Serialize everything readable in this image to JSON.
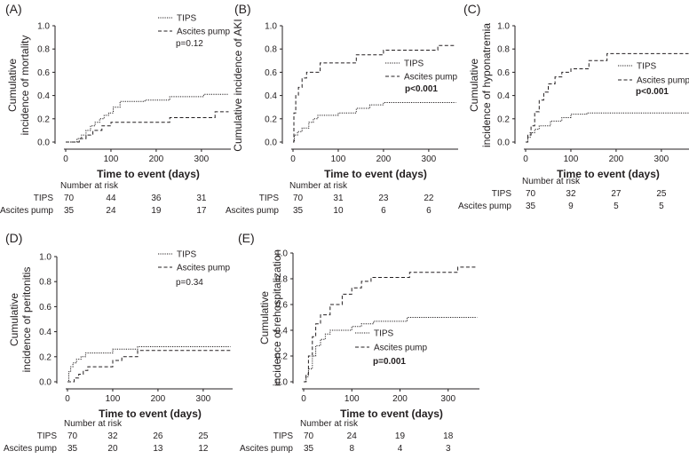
{
  "chart_data": [
    {
      "type": "line",
      "panel_label": "(A)",
      "title": "",
      "xlabel": "Time to event (days)",
      "ylabel": [
        "Cumulative",
        "incidence of mortality"
      ],
      "xlim": [
        0,
        365
      ],
      "ylim": [
        0,
        1
      ],
      "xticks": [
        0,
        100,
        200,
        300
      ],
      "xtick_labels": [
        "0",
        "100",
        "200",
        "300"
      ],
      "yticks": [
        0,
        0.2,
        0.4,
        0.6,
        0.8,
        1.0
      ],
      "ytick_labels": [
        "0.0",
        "0.2",
        "0.4",
        "0.6",
        "0.8",
        "1.0"
      ],
      "legend_position": "top-right",
      "pvalue": "p=0.12",
      "pvalue_bold": false,
      "series": [
        {
          "name": "TIPS",
          "style": "dotted",
          "steps": [
            [
              0,
              0
            ],
            [
              15,
              0
            ],
            [
              25,
              0.03
            ],
            [
              35,
              0.06
            ],
            [
              45,
              0.1
            ],
            [
              55,
              0.14
            ],
            [
              65,
              0.17
            ],
            [
              75,
              0.2
            ],
            [
              85,
              0.23
            ],
            [
              95,
              0.25
            ],
            [
              105,
              0.3
            ],
            [
              120,
              0.35
            ],
            [
              175,
              0.36
            ],
            [
              230,
              0.39
            ],
            [
              305,
              0.41
            ],
            [
              360,
              0.41
            ]
          ]
        },
        {
          "name": "Ascites pump",
          "style": "dashed",
          "steps": [
            [
              0,
              0
            ],
            [
              20,
              0
            ],
            [
              30,
              0.03
            ],
            [
              45,
              0.06
            ],
            [
              60,
              0.1
            ],
            [
              80,
              0.14
            ],
            [
              100,
              0.17
            ],
            [
              230,
              0.21
            ],
            [
              330,
              0.26
            ],
            [
              360,
              0.26
            ]
          ]
        }
      ],
      "risk_table": {
        "heading": "Number at risk",
        "rows": [
          {
            "label": "TIPS",
            "values": [
              "70",
              "44",
              "36",
              "31"
            ]
          },
          {
            "label": "Ascites pump",
            "values": [
              "35",
              "24",
              "19",
              "17"
            ]
          }
        ]
      }
    },
    {
      "type": "line",
      "panel_label": "(B)",
      "title": "",
      "xlabel": "Time to event (days)",
      "ylabel": [
        "Cumulative incidence of AKI"
      ],
      "xlim": [
        0,
        365
      ],
      "ylim": [
        0,
        1
      ],
      "xticks": [
        0,
        100,
        200,
        300
      ],
      "xtick_labels": [
        "0",
        "100",
        "200",
        "300"
      ],
      "yticks": [
        0,
        0.2,
        0.4,
        0.6,
        0.8,
        1.0
      ],
      "ytick_labels": [
        "0.0",
        "0.2",
        "0.4",
        "0.6",
        "0.8",
        "1.0"
      ],
      "legend_position": "right",
      "pvalue": "p<0.001",
      "pvalue_bold": true,
      "series": [
        {
          "name": "TIPS",
          "style": "dotted",
          "steps": [
            [
              0,
              0
            ],
            [
              3,
              0.06
            ],
            [
              10,
              0.09
            ],
            [
              20,
              0.12
            ],
            [
              35,
              0.17
            ],
            [
              45,
              0.2
            ],
            [
              55,
              0.23
            ],
            [
              100,
              0.25
            ],
            [
              140,
              0.29
            ],
            [
              170,
              0.32
            ],
            [
              200,
              0.34
            ],
            [
              360,
              0.34
            ]
          ]
        },
        {
          "name": "Ascites pump",
          "style": "dashed",
          "steps": [
            [
              0,
              0
            ],
            [
              2,
              0.25
            ],
            [
              6,
              0.4
            ],
            [
              12,
              0.47
            ],
            [
              20,
              0.55
            ],
            [
              30,
              0.6
            ],
            [
              60,
              0.68
            ],
            [
              140,
              0.75
            ],
            [
              200,
              0.79
            ],
            [
              320,
              0.83
            ],
            [
              360,
              0.83
            ]
          ]
        }
      ],
      "risk_table": {
        "heading": "Number at risk",
        "rows": [
          {
            "label": "TIPS",
            "values": [
              "70",
              "31",
              "23",
              "22"
            ]
          },
          {
            "label": "Ascites pump",
            "values": [
              "35",
              "10",
              "6",
              "6"
            ]
          }
        ]
      }
    },
    {
      "type": "line",
      "panel_label": "(C)",
      "title": "",
      "xlabel": "Time to event (days)",
      "ylabel": [
        "Cumulative",
        "incidence of hyponatremia"
      ],
      "xlim": [
        0,
        365
      ],
      "ylim": [
        0,
        1
      ],
      "xticks": [
        0,
        100,
        200,
        300
      ],
      "xtick_labels": [
        "0",
        "100",
        "200",
        "300"
      ],
      "yticks": [
        0,
        0.2,
        0.4,
        0.6,
        0.8,
        1.0
      ],
      "ytick_labels": [
        "0.0",
        "0.2",
        "0.4",
        "0.6",
        "0.8",
        "1.0"
      ],
      "legend_position": "right",
      "pvalue": "p<0.001",
      "pvalue_bold": true,
      "series": [
        {
          "name": "TIPS",
          "style": "dotted",
          "steps": [
            [
              0,
              0
            ],
            [
              5,
              0.04
            ],
            [
              10,
              0.08
            ],
            [
              20,
              0.11
            ],
            [
              30,
              0.14
            ],
            [
              55,
              0.18
            ],
            [
              80,
              0.21
            ],
            [
              100,
              0.24
            ],
            [
              135,
              0.25
            ],
            [
              360,
              0.25
            ]
          ]
        },
        {
          "name": "Ascites pump",
          "style": "dashed",
          "steps": [
            [
              0,
              0
            ],
            [
              5,
              0.06
            ],
            [
              12,
              0.14
            ],
            [
              20,
              0.26
            ],
            [
              30,
              0.36
            ],
            [
              40,
              0.43
            ],
            [
              50,
              0.5
            ],
            [
              65,
              0.56
            ],
            [
              80,
              0.6
            ],
            [
              100,
              0.63
            ],
            [
              140,
              0.7
            ],
            [
              180,
              0.76
            ],
            [
              360,
              0.76
            ]
          ]
        }
      ],
      "risk_table": {
        "heading": "Number at risk",
        "rows": [
          {
            "label": "TIPS",
            "values": [
              "70",
              "32",
              "27",
              "25"
            ]
          },
          {
            "label": "Ascites pump",
            "values": [
              "35",
              "9",
              "5",
              "5"
            ]
          }
        ]
      }
    },
    {
      "type": "line",
      "panel_label": "(D)",
      "title": "",
      "xlabel": "Time to event (days)",
      "ylabel": [
        "Cumulative",
        "incidence of peritonitis"
      ],
      "xlim": [
        0,
        365
      ],
      "ylim": [
        0,
        1
      ],
      "xticks": [
        0,
        100,
        200,
        300
      ],
      "xtick_labels": [
        "0",
        "100",
        "200",
        "300"
      ],
      "yticks": [
        0,
        0.2,
        0.4,
        0.6,
        0.8,
        1.0
      ],
      "ytick_labels": [
        "0.0",
        "0.2",
        "0.4",
        "0.6",
        "0.8",
        "1.0"
      ],
      "legend_position": "top-right",
      "pvalue": "p=0.34",
      "pvalue_bold": false,
      "series": [
        {
          "name": "TIPS",
          "style": "dotted",
          "steps": [
            [
              0,
              0
            ],
            [
              3,
              0.08
            ],
            [
              7,
              0.12
            ],
            [
              12,
              0.15
            ],
            [
              20,
              0.18
            ],
            [
              30,
              0.2
            ],
            [
              40,
              0.23
            ],
            [
              100,
              0.26
            ],
            [
              155,
              0.28
            ],
            [
              360,
              0.28
            ]
          ]
        },
        {
          "name": "Ascites pump",
          "style": "dashed",
          "steps": [
            [
              0,
              0
            ],
            [
              15,
              0.03
            ],
            [
              25,
              0.06
            ],
            [
              35,
              0.09
            ],
            [
              45,
              0.12
            ],
            [
              100,
              0.17
            ],
            [
              120,
              0.2
            ],
            [
              155,
              0.25
            ],
            [
              360,
              0.25
            ]
          ]
        }
      ],
      "risk_table": {
        "heading": "Number at risk",
        "rows": [
          {
            "label": "TIPS",
            "values": [
              "70",
              "32",
              "26",
              "25"
            ]
          },
          {
            "label": "Ascites pump",
            "values": [
              "35",
              "20",
              "13",
              "12"
            ]
          }
        ]
      }
    },
    {
      "type": "line",
      "panel_label": "(E)",
      "title": "",
      "xlabel": "Time to event (days)",
      "ylabel": [
        "Cumulative",
        "incidence of rehospitalization"
      ],
      "xlim": [
        0,
        365
      ],
      "ylim": [
        0,
        1
      ],
      "xticks": [
        0,
        100,
        200,
        300
      ],
      "xtick_labels": [
        "0",
        "100",
        "200",
        "300"
      ],
      "yticks": [
        0,
        0.2,
        0.4,
        0.6,
        0.8,
        1.0
      ],
      "ytick_labels": [
        "0.0",
        "0.2",
        "0.4",
        "0.6",
        "0.8",
        "1.0"
      ],
      "legend_position": "bottom-right",
      "pvalue": "p=0.001",
      "pvalue_bold": true,
      "series": [
        {
          "name": "TIPS",
          "style": "dotted",
          "steps": [
            [
              0,
              0
            ],
            [
              5,
              0.04
            ],
            [
              10,
              0.1
            ],
            [
              18,
              0.2
            ],
            [
              25,
              0.28
            ],
            [
              35,
              0.33
            ],
            [
              45,
              0.37
            ],
            [
              55,
              0.4
            ],
            [
              100,
              0.43
            ],
            [
              120,
              0.45
            ],
            [
              145,
              0.47
            ],
            [
              215,
              0.5
            ],
            [
              360,
              0.5
            ]
          ]
        },
        {
          "name": "Ascites pump",
          "style": "dashed",
          "steps": [
            [
              0,
              0
            ],
            [
              5,
              0.06
            ],
            [
              10,
              0.2
            ],
            [
              18,
              0.35
            ],
            [
              25,
              0.45
            ],
            [
              35,
              0.52
            ],
            [
              55,
              0.6
            ],
            [
              80,
              0.68
            ],
            [
              100,
              0.73
            ],
            [
              120,
              0.78
            ],
            [
              140,
              0.81
            ],
            [
              220,
              0.85
            ],
            [
              320,
              0.89
            ],
            [
              360,
              0.89
            ]
          ]
        }
      ],
      "risk_table": {
        "heading": "Number at risk",
        "rows": [
          {
            "label": "TIPS",
            "values": [
              "70",
              "24",
              "19",
              "18"
            ]
          },
          {
            "label": "Ascites pump",
            "values": [
              "35",
              "8",
              "4",
              "3"
            ]
          }
        ]
      }
    }
  ]
}
